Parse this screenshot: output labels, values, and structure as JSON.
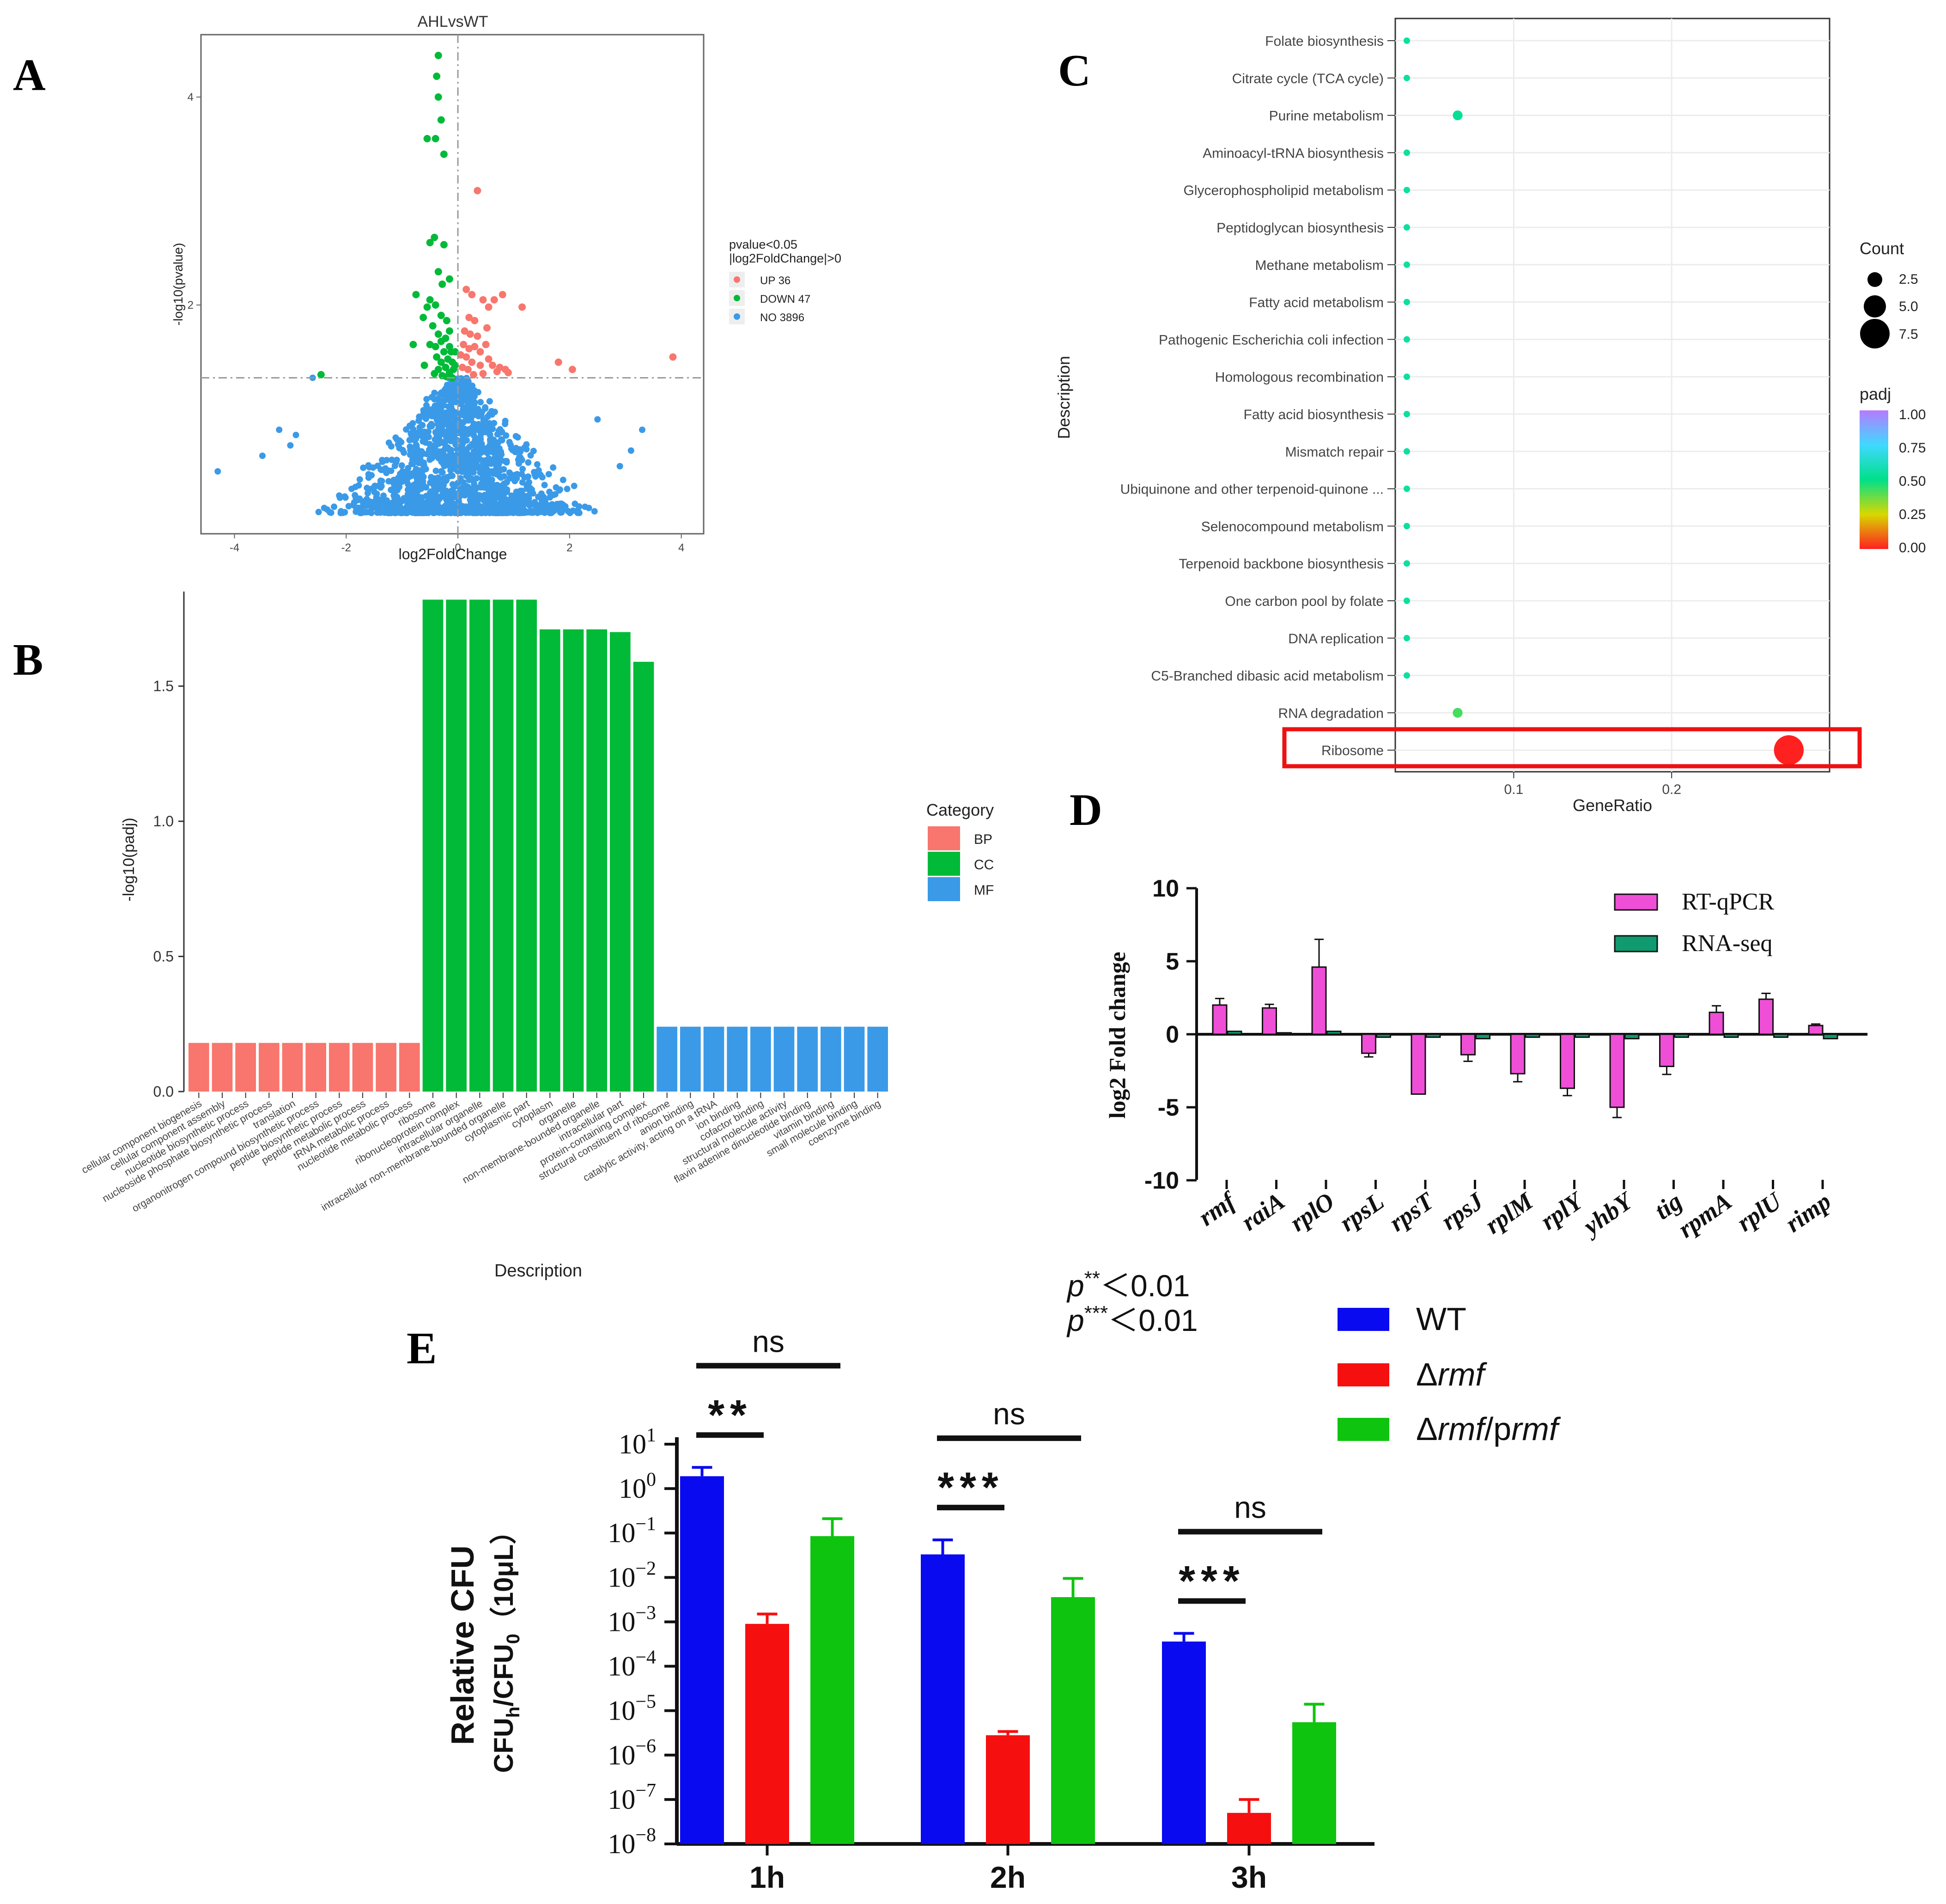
{
  "panel_labels": [
    "A",
    "B",
    "C",
    "D",
    "E"
  ],
  "chart_data": [
    {
      "panel": "A",
      "type": "scatter",
      "title": "AHLvsWT",
      "xlabel": "log2FoldChange",
      "ylabel": "-log10(pvalue)",
      "xlim": [
        -4.6,
        4.4
      ],
      "ylim": [
        -0.2,
        4.6
      ],
      "xticks": [
        -4,
        -2,
        0,
        2,
        4
      ],
      "yticks": [
        2,
        4
      ],
      "xticklabels": [
        "-4",
        "-2",
        "0",
        "2",
        "4"
      ],
      "yticklabels": [
        "2",
        "4"
      ],
      "legend": {
        "title_lines": [
          "pvalue<0.05",
          "|log2FoldChange|>0"
        ],
        "entries": [
          {
            "label": "UP 36",
            "color": "#f8766d"
          },
          {
            "label": "DOWN 47",
            "color": "#00ba38"
          },
          {
            "label": "NO 3896",
            "color": "#3a9ae8"
          }
        ]
      },
      "thresholds": {
        "x": 0,
        "y": 1.3
      },
      "colors": {
        "up": "#f8766d",
        "down": "#00ba38",
        "no": "#3a9ae8"
      },
      "up_points": [
        [
          0.35,
          3.1
        ],
        [
          0.15,
          2.15
        ],
        [
          0.25,
          2.1
        ],
        [
          0.45,
          2.05
        ],
        [
          0.55,
          1.98
        ],
        [
          0.65,
          2.05
        ],
        [
          0.8,
          2.1
        ],
        [
          1.15,
          1.98
        ],
        [
          0.2,
          1.88
        ],
        [
          0.3,
          1.85
        ],
        [
          0.12,
          1.75
        ],
        [
          0.22,
          1.72
        ],
        [
          0.35,
          1.7
        ],
        [
          0.1,
          1.62
        ],
        [
          0.2,
          1.58
        ],
        [
          0.3,
          1.6
        ],
        [
          0.4,
          1.55
        ],
        [
          0.5,
          1.62
        ],
        [
          0.15,
          1.5
        ],
        [
          0.25,
          1.45
        ],
        [
          0.4,
          1.42
        ],
        [
          0.55,
          1.48
        ],
        [
          0.62,
          1.42
        ],
        [
          0.75,
          1.4
        ],
        [
          0.85,
          1.38
        ],
        [
          0.9,
          1.35
        ],
        [
          0.05,
          1.52
        ],
        [
          0.08,
          1.4
        ],
        [
          0.18,
          1.38
        ],
        [
          0.28,
          1.33
        ],
        [
          0.45,
          1.34
        ],
        [
          0.7,
          1.36
        ],
        [
          1.8,
          1.45
        ],
        [
          2.05,
          1.38
        ],
        [
          3.85,
          1.5
        ],
        [
          0.52,
          1.78
        ]
      ],
      "down_points": [
        [
          -0.35,
          4.4
        ],
        [
          -0.38,
          4.2
        ],
        [
          -0.35,
          4.0
        ],
        [
          -0.3,
          3.78
        ],
        [
          -0.55,
          3.6
        ],
        [
          -0.4,
          3.6
        ],
        [
          -0.25,
          3.45
        ],
        [
          -0.5,
          2.6
        ],
        [
          -0.42,
          2.65
        ],
        [
          -0.25,
          2.58
        ],
        [
          -0.35,
          2.32
        ],
        [
          -0.28,
          2.2
        ],
        [
          -0.15,
          2.25
        ],
        [
          -0.75,
          2.1
        ],
        [
          -0.5,
          2.05
        ],
        [
          -0.4,
          2.0
        ],
        [
          -0.55,
          1.98
        ],
        [
          -0.62,
          1.88
        ],
        [
          -0.3,
          1.9
        ],
        [
          -0.2,
          1.85
        ],
        [
          -0.45,
          1.8
        ],
        [
          -0.15,
          1.75
        ],
        [
          -0.35,
          1.72
        ],
        [
          -0.22,
          1.68
        ],
        [
          -0.3,
          1.65
        ],
        [
          -0.15,
          1.6
        ],
        [
          -0.4,
          1.6
        ],
        [
          -0.5,
          1.62
        ],
        [
          -0.8,
          1.62
        ],
        [
          -0.12,
          1.55
        ],
        [
          -0.25,
          1.55
        ],
        [
          -0.38,
          1.5
        ],
        [
          -0.18,
          1.48
        ],
        [
          -0.3,
          1.45
        ],
        [
          -0.1,
          1.45
        ],
        [
          -0.22,
          1.4
        ],
        [
          -0.35,
          1.38
        ],
        [
          -0.08,
          1.38
        ],
        [
          -0.15,
          1.35
        ],
        [
          -0.28,
          1.32
        ],
        [
          -0.42,
          1.34
        ],
        [
          -0.2,
          1.31
        ],
        [
          -0.1,
          1.3
        ],
        [
          -0.05,
          1.42
        ],
        [
          -0.6,
          1.42
        ],
        [
          -2.45,
          1.33
        ],
        [
          -0.05,
          1.55
        ]
      ],
      "no_spread": {
        "count": 3896,
        "y_min": 0,
        "y_max": 1.3
      }
    },
    {
      "panel": "B",
      "type": "bar",
      "xlabel": "Description",
      "ylabel": "-log10(padj)",
      "ylim": [
        0,
        1.85
      ],
      "yticks": [
        0.0,
        0.5,
        1.0,
        1.5
      ],
      "yticklabels": [
        "0.0",
        "0.5",
        "1.0",
        "1.5"
      ],
      "legend": {
        "title": "Category",
        "entries": [
          {
            "label": "BP",
            "color": "#f8766d"
          },
          {
            "label": "CC",
            "color": "#00ba38"
          },
          {
            "label": "MF",
            "color": "#3a9ae8"
          }
        ]
      },
      "categories": [
        "cellular component biogenesis",
        "cellular component assembly",
        "nucleotide biosynthetic process",
        "nucleoside phosphate biosynthetic process",
        "translation",
        "organonitrogen compound biosynthetic process",
        "peptide biosynthetic process",
        "peptide metabolic process",
        "tRNA metabolic process",
        "nucleotide metabolic process",
        "ribosome",
        "ribonucleoprotein complex",
        "intracellular organelle",
        "intracellular non-membrane-bounded organelle",
        "cytoplasmic part",
        "cytoplasm",
        "organelle",
        "non-membrane-bounded organelle",
        "intracellular part",
        "protein-containing complex",
        "structural constituent of ribosome",
        "anion binding",
        "catalytic activity, acting on a tRNA",
        "ion binding",
        "cofactor binding",
        "structural molecule activity",
        "flavin adenine dinucleotide binding",
        "vitamin binding",
        "small molecule binding",
        "coenzyme binding"
      ],
      "values": [
        0.18,
        0.18,
        0.18,
        0.18,
        0.18,
        0.18,
        0.18,
        0.18,
        0.18,
        0.18,
        1.82,
        1.82,
        1.82,
        1.82,
        1.82,
        1.71,
        1.71,
        1.71,
        1.7,
        1.59,
        0.24,
        0.24,
        0.24,
        0.24,
        0.24,
        0.24,
        0.24,
        0.24,
        0.24,
        0.24
      ],
      "category_of_bar": [
        "BP",
        "BP",
        "BP",
        "BP",
        "BP",
        "BP",
        "BP",
        "BP",
        "BP",
        "BP",
        "CC",
        "CC",
        "CC",
        "CC",
        "CC",
        "CC",
        "CC",
        "CC",
        "CC",
        "CC",
        "MF",
        "MF",
        "MF",
        "MF",
        "MF",
        "MF",
        "MF",
        "MF",
        "MF",
        "MF"
      ]
    },
    {
      "panel": "C",
      "type": "scatter",
      "xlabel": "GeneRatio",
      "ylabel": "Description",
      "xlim": [
        0.025,
        0.3
      ],
      "xticks": [
        0.1,
        0.2
      ],
      "xticklabels": [
        "0.1",
        "0.2"
      ],
      "categories": [
        "Folate biosynthesis",
        "Citrate cycle (TCA cycle)",
        "Purine metabolism",
        "Aminoacyl-tRNA biosynthesis",
        "Glycerophospholipid metabolism",
        "Peptidoglycan biosynthesis",
        "Methane metabolism",
        "Fatty acid metabolism",
        "Pathogenic Escherichia coli infection",
        "Homologous recombination",
        "Fatty acid biosynthesis",
        "Mismatch repair",
        "Ubiquinone and other terpenoid-quinone ...",
        "Selenocompound metabolism",
        "Terpenoid backbone biosynthesis",
        "One carbon pool by folate",
        "DNA replication",
        "C5-Branched dibasic acid metabolism",
        "RNA degradation",
        "Ribosome"
      ],
      "gene_ratio": [
        0.0323,
        0.0323,
        0.0645,
        0.0323,
        0.0323,
        0.0323,
        0.0323,
        0.0323,
        0.0323,
        0.0323,
        0.0323,
        0.0323,
        0.0323,
        0.0323,
        0.0323,
        0.0323,
        0.0323,
        0.0323,
        0.0645,
        0.2742
      ],
      "count": [
        1,
        1,
        2,
        1,
        1,
        1,
        1,
        1,
        1,
        1,
        1,
        1,
        1,
        1,
        1,
        1,
        1,
        1,
        2,
        8
      ],
      "padj": [
        0.55,
        0.55,
        0.52,
        0.55,
        0.55,
        0.55,
        0.55,
        0.55,
        0.55,
        0.55,
        0.55,
        0.55,
        0.55,
        0.55,
        0.55,
        0.55,
        0.55,
        0.55,
        0.42,
        0.0
      ],
      "highlight": "Ribosome",
      "size_legend": {
        "title": "Count",
        "values": [
          2.5,
          5.0,
          7.5
        ],
        "labels": [
          "2.5",
          "5.0",
          "7.5"
        ]
      },
      "color_legend": {
        "title": "padj",
        "ticks": [
          1.0,
          0.75,
          0.5,
          0.25,
          0.0
        ],
        "labels": [
          "1.00",
          "0.75",
          "0.50",
          "0.25",
          "0.00"
        ]
      }
    },
    {
      "panel": "D",
      "type": "bar",
      "ylabel": "log2 Fold change",
      "ylim": [
        -10,
        10
      ],
      "yticks": [
        10,
        5,
        0,
        -5,
        -10
      ],
      "yticklabels": [
        "10",
        "5",
        "0",
        "-5",
        "-10"
      ],
      "categories": [
        "rmf",
        "raiA",
        "rplO",
        "rpsL",
        "rpsT",
        "rpsJ",
        "rplM",
        "rplY",
        "yhbY",
        "tig",
        "rpmA",
        "rplU",
        "rimp"
      ],
      "series": [
        {
          "name": "RT-qPCR",
          "color": "#ee4fd6",
          "values": [
            2.0,
            1.8,
            4.6,
            -1.3,
            -4.1,
            -1.4,
            -2.7,
            -3.7,
            -5.0,
            -2.2,
            1.5,
            2.4,
            0.6
          ],
          "errors": [
            0.45,
            0.25,
            1.9,
            0.25,
            0.0,
            0.45,
            0.55,
            0.5,
            0.7,
            0.55,
            0.45,
            0.4,
            0.1
          ]
        },
        {
          "name": "RNA-seq",
          "color": "#0f9a6f",
          "values": [
            0.2,
            0.1,
            0.2,
            -0.2,
            -0.2,
            -0.3,
            -0.2,
            -0.2,
            -0.3,
            -0.2,
            -0.2,
            -0.2,
            -0.3
          ],
          "errors": [
            0,
            0,
            0,
            0,
            0,
            0,
            0,
            0,
            0,
            0,
            0,
            0,
            0
          ]
        }
      ]
    },
    {
      "panel": "E",
      "type": "bar",
      "ylabel": "Relative CFU",
      "ylabel2_parts": [
        "CFU",
        "h",
        "/CFU",
        "0",
        "（10μL）"
      ],
      "log_scale": true,
      "ylim_exp": [
        -8,
        1
      ],
      "ytick_exps": [
        1,
        0,
        -1,
        -2,
        -3,
        -4,
        -5,
        -6,
        -7,
        -8
      ],
      "ytick_exp_labels": [
        "1",
        "0",
        "−1",
        "−2",
        "−3",
        "−4",
        "−5",
        "−6",
        "−7",
        "−8"
      ],
      "ytick_base": "10",
      "categories": [
        "1h",
        "2h",
        "3h"
      ],
      "series": [
        {
          "name": "WT",
          "color": "#0a0af0",
          "values": [
            1.9,
            0.033,
            0.00036
          ],
          "error_top": [
            3.0,
            0.07,
            0.00055
          ]
        },
        {
          "name": "Δrmf",
          "color": "#f50f0f",
          "values": [
            0.0009,
            2.8e-06,
            5e-08
          ],
          "error_top": [
            0.0015,
            3.4e-06,
            1e-07
          ]
        },
        {
          "name": "Δrmf/prmf",
          "color": "#0fc40f",
          "values": [
            0.085,
            0.0036,
            5.5e-06
          ],
          "error_top": [
            0.21,
            0.0095,
            1.4e-05
          ]
        }
      ],
      "legend": {
        "entries": [
          {
            "pre": "",
            "italic": "",
            "post": "WT",
            "color": "#0a0af0"
          },
          {
            "pre": "Δ",
            "italic": "rmf",
            "post": "",
            "color": "#f50f0f"
          },
          {
            "pre": "Δ",
            "italic": "rmf",
            "post": "/p",
            "italic2": "rmf",
            "color": "#0fc40f"
          }
        ]
      },
      "significance_note": [
        {
          "p": "p",
          "stars": "**",
          "rest": "＜0.01"
        },
        {
          "p": "p",
          "stars": "***",
          "rest": "＜0.01"
        }
      ],
      "annotations": [
        {
          "group": "1h",
          "ns": "ns",
          "stars": "**"
        },
        {
          "group": "2h",
          "ns": "ns",
          "stars": "***"
        },
        {
          "group": "3h",
          "ns": "ns",
          "stars": "***"
        }
      ]
    }
  ]
}
